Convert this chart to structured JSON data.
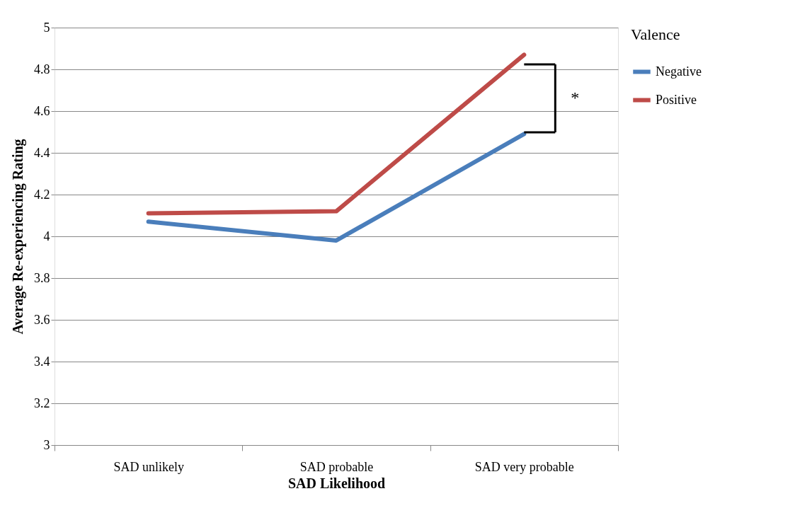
{
  "chart_data": {
    "type": "line",
    "xlabel": "SAD Likelihood",
    "ylabel": "Average Re-experiencing Rating",
    "legend_title": "Valence",
    "categories": [
      "SAD unlikely",
      "SAD probable",
      "SAD very probable"
    ],
    "series": [
      {
        "name": "Negative",
        "color": "#4a7ebb",
        "values": [
          4.07,
          3.98,
          4.49
        ]
      },
      {
        "name": "Positive",
        "color": "#be4b48",
        "values": [
          4.11,
          4.12,
          4.87
        ]
      }
    ],
    "ylim": [
      3,
      5
    ],
    "yticks": [
      3,
      3.2,
      3.4,
      3.6,
      3.8,
      4,
      4.2,
      4.4,
      4.6,
      4.8,
      5
    ],
    "grid": "y",
    "legend": "right",
    "marker": "none",
    "line_style": "solid",
    "annotations": [
      "*"
    ]
  }
}
